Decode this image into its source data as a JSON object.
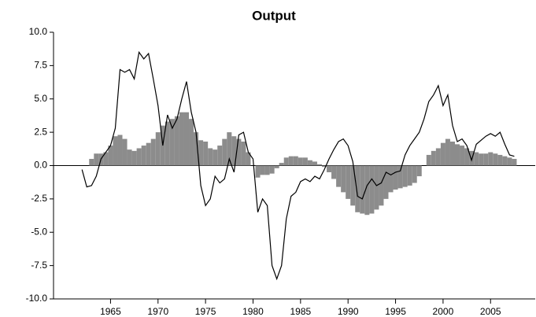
{
  "chart_data": {
    "type": "line",
    "title": "Output",
    "x": [
      1962,
      1962.5,
      1963,
      1963.5,
      1964,
      1964.5,
      1965,
      1965.5,
      1966,
      1966.5,
      1967,
      1967.5,
      1968,
      1968.5,
      1969,
      1969.5,
      1970,
      1970.5,
      1971,
      1971.5,
      1972,
      1972.5,
      1973,
      1973.5,
      1974,
      1974.5,
      1975,
      1975.5,
      1976,
      1976.5,
      1977,
      1977.5,
      1978,
      1978.5,
      1979,
      1979.5,
      1980,
      1980.5,
      1981,
      1981.5,
      1982,
      1982.5,
      1983,
      1983.5,
      1984,
      1984.5,
      1985,
      1985.5,
      1986,
      1986.5,
      1987,
      1987.5,
      1988,
      1988.5,
      1989,
      1989.5,
      1990,
      1990.5,
      1991,
      1991.5,
      1992,
      1992.5,
      1993,
      1993.5,
      1994,
      1994.5,
      1995,
      1995.5,
      1996,
      1996.5,
      1997,
      1997.5,
      1998,
      1998.5,
      1999,
      1999.5,
      2000,
      2000.5,
      2001,
      2001.5,
      2002,
      2002.5,
      2003,
      2003.5,
      2004,
      2004.5,
      2005,
      2005.5,
      2006,
      2006.5,
      2007,
      2007.5
    ],
    "series": [
      {
        "type": "line",
        "color": "#000000",
        "values": [
          -0.3,
          -1.6,
          -1.5,
          -0.8,
          0.5,
          1.0,
          1.5,
          2.8,
          7.2,
          7.0,
          7.2,
          6.5,
          8.5,
          8.0,
          8.4,
          6.5,
          4.5,
          1.5,
          3.8,
          2.8,
          3.5,
          5.0,
          6.3,
          4.0,
          2.5,
          -1.5,
          -3.0,
          -2.5,
          -0.8,
          -1.3,
          -1.0,
          0.5,
          -0.5,
          2.3,
          2.5,
          1.0,
          0.5,
          -3.5,
          -2.5,
          -3.0,
          -7.5,
          -8.5,
          -7.5,
          -4.0,
          -2.3,
          -2.0,
          -1.2,
          -1.0,
          -1.2,
          -0.8,
          -1.0,
          -0.3,
          0.5,
          1.2,
          1.8,
          2.0,
          1.5,
          0.3,
          -2.3,
          -2.5,
          -1.5,
          -1.0,
          -1.5,
          -1.3,
          -0.5,
          -0.7,
          -0.5,
          -0.4,
          0.8,
          1.5,
          2.0,
          2.5,
          3.5,
          4.8,
          5.3,
          6.0,
          4.5,
          5.3,
          3.0,
          1.8,
          2.0,
          1.5,
          0.4,
          1.6,
          1.9,
          2.2,
          2.4,
          2.2,
          2.5,
          1.6,
          0.8,
          0.7
        ]
      },
      {
        "type": "bar",
        "color": "#8c8c8c",
        "values": [
          null,
          0.0,
          0.5,
          0.9,
          0.9,
          1.0,
          1.5,
          2.2,
          2.3,
          2.0,
          1.2,
          1.1,
          1.3,
          1.5,
          1.7,
          2.0,
          2.5,
          3.0,
          3.3,
          3.5,
          3.7,
          4.0,
          4.0,
          3.5,
          2.5,
          1.9,
          1.8,
          1.3,
          1.2,
          1.5,
          2.0,
          2.5,
          2.2,
          2.0,
          1.8,
          1.0,
          0.0,
          -0.9,
          -0.7,
          -0.7,
          -0.6,
          -0.2,
          0.2,
          0.6,
          0.7,
          0.7,
          0.6,
          0.6,
          0.4,
          0.3,
          0.1,
          -0.1,
          -0.5,
          -1.0,
          -1.6,
          -2.0,
          -2.5,
          -3.0,
          -3.5,
          -3.6,
          -3.7,
          -3.6,
          -3.3,
          -3.0,
          -2.5,
          -2.0,
          -1.8,
          -1.7,
          -1.6,
          -1.5,
          -1.3,
          -0.8,
          0.0,
          0.8,
          1.1,
          1.3,
          1.7,
          2.0,
          1.8,
          1.6,
          1.5,
          1.3,
          1.1,
          1.0,
          0.9,
          0.9,
          1.0,
          0.9,
          0.8,
          0.7,
          0.6,
          0.5
        ]
      }
    ],
    "xlim": [
      1959,
      2009.7
    ],
    "xticks": [
      1965,
      1970,
      1975,
      1980,
      1985,
      1990,
      1995,
      2000,
      2005
    ],
    "ylim": [
      -10,
      10
    ],
    "yticks": [
      {
        "value": -10,
        "label": "-10.0"
      },
      -7.5,
      {
        "value": -5,
        "label": "-5.0"
      },
      -2.5,
      {
        "value": 0,
        "label": "0.0"
      },
      2.5,
      {
        "value": 5,
        "label": "5.0"
      },
      7.5,
      {
        "value": 10,
        "label": "10.0"
      }
    ]
  }
}
